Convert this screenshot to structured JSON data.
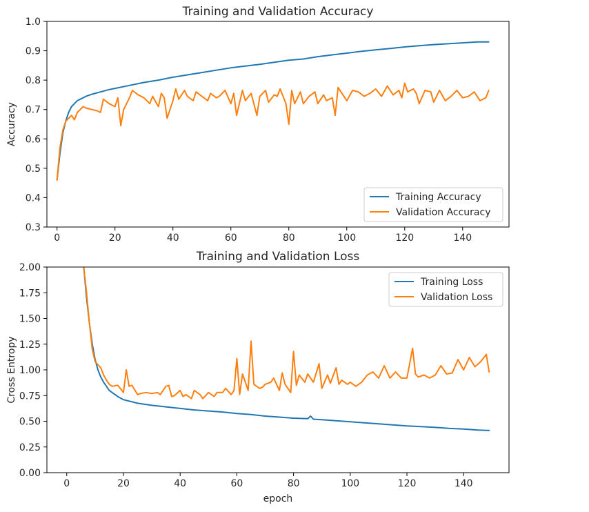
{
  "chart_data": [
    {
      "type": "line",
      "title": "Training and Validation Accuracy",
      "xlabel": "",
      "ylabel": "Accuracy",
      "xlim": [
        -3.5,
        156
      ],
      "ylim": [
        0.3,
        1.0
      ],
      "xticks": [
        0,
        20,
        40,
        60,
        80,
        100,
        120,
        140
      ],
      "yticks": [
        0.3,
        0.4,
        0.5,
        0.6,
        0.7,
        0.8,
        0.9,
        1.0
      ],
      "ytick_labels": [
        "0.3",
        "0.4",
        "0.5",
        "0.6",
        "0.7",
        "0.8",
        "0.9",
        "1.0"
      ],
      "legend_position": "lower-right",
      "series": [
        {
          "name": "Training Accuracy",
          "color": "#1f77b4",
          "x": [
            0,
            1,
            2,
            3,
            4,
            5,
            6,
            7,
            8,
            10,
            12,
            15,
            18,
            20,
            25,
            30,
            35,
            40,
            45,
            50,
            55,
            60,
            65,
            70,
            75,
            80,
            85,
            90,
            95,
            100,
            105,
            110,
            115,
            120,
            125,
            130,
            135,
            140,
            145,
            149
          ],
          "values": [
            0.46,
            0.55,
            0.62,
            0.66,
            0.69,
            0.71,
            0.72,
            0.73,
            0.735,
            0.745,
            0.752,
            0.76,
            0.768,
            0.772,
            0.782,
            0.792,
            0.8,
            0.81,
            0.818,
            0.826,
            0.834,
            0.842,
            0.848,
            0.854,
            0.861,
            0.868,
            0.872,
            0.88,
            0.886,
            0.892,
            0.898,
            0.903,
            0.908,
            0.913,
            0.917,
            0.921,
            0.924,
            0.927,
            0.93,
            0.93
          ]
        },
        {
          "name": "Validation Accuracy",
          "color": "#ff7f0e",
          "x": [
            0,
            1,
            2,
            3,
            4,
            5,
            6,
            7,
            8,
            9,
            10,
            12,
            14,
            15,
            16,
            18,
            20,
            21,
            22,
            23,
            25,
            26,
            28,
            30,
            32,
            33,
            35,
            36,
            37,
            38,
            40,
            41,
            42,
            44,
            45,
            47,
            48,
            50,
            52,
            53,
            55,
            56,
            58,
            60,
            61,
            62,
            64,
            65,
            67,
            69,
            70,
            72,
            73,
            75,
            76,
            77,
            79,
            80,
            81,
            82,
            84,
            85,
            87,
            89,
            90,
            92,
            93,
            95,
            96,
            97,
            99,
            100,
            102,
            104,
            106,
            108,
            110,
            112,
            114,
            116,
            118,
            119,
            120,
            121,
            123,
            124,
            125,
            127,
            129,
            130,
            132,
            134,
            136,
            138,
            140,
            142,
            144,
            146,
            148,
            149
          ],
          "values": [
            0.46,
            0.57,
            0.63,
            0.66,
            0.67,
            0.68,
            0.665,
            0.69,
            0.7,
            0.71,
            0.705,
            0.7,
            0.695,
            0.69,
            0.735,
            0.72,
            0.71,
            0.74,
            0.645,
            0.7,
            0.74,
            0.765,
            0.75,
            0.74,
            0.72,
            0.745,
            0.71,
            0.755,
            0.74,
            0.67,
            0.73,
            0.77,
            0.735,
            0.765,
            0.745,
            0.73,
            0.76,
            0.745,
            0.73,
            0.755,
            0.74,
            0.745,
            0.765,
            0.72,
            0.755,
            0.68,
            0.765,
            0.73,
            0.755,
            0.68,
            0.745,
            0.765,
            0.725,
            0.75,
            0.745,
            0.77,
            0.72,
            0.65,
            0.765,
            0.72,
            0.76,
            0.72,
            0.745,
            0.76,
            0.72,
            0.75,
            0.73,
            0.74,
            0.68,
            0.775,
            0.745,
            0.73,
            0.765,
            0.76,
            0.745,
            0.755,
            0.77,
            0.745,
            0.78,
            0.75,
            0.765,
            0.74,
            0.79,
            0.76,
            0.77,
            0.755,
            0.72,
            0.765,
            0.76,
            0.725,
            0.765,
            0.73,
            0.745,
            0.765,
            0.74,
            0.745,
            0.76,
            0.73,
            0.74,
            0.765
          ]
        }
      ]
    },
    {
      "type": "line",
      "title": "Training and Validation Loss",
      "xlabel": "epoch",
      "ylabel": "Cross Entropy",
      "xlim": [
        -7,
        156
      ],
      "ylim": [
        0.0,
        2.0
      ],
      "xticks": [
        0,
        20,
        40,
        60,
        80,
        100,
        120,
        140
      ],
      "yticks": [
        0.0,
        0.25,
        0.5,
        0.75,
        1.0,
        1.25,
        1.5,
        1.75,
        2.0
      ],
      "ytick_labels": [
        "0.00",
        "0.25",
        "0.50",
        "0.75",
        "1.00",
        "1.25",
        "1.50",
        "1.75",
        "2.00"
      ],
      "legend_position": "upper-right",
      "series": [
        {
          "name": "Training Loss",
          "color": "#1f77b4",
          "x": [
            6,
            7,
            8,
            9,
            10,
            11,
            12,
            13,
            14,
            15,
            16,
            18,
            20,
            25,
            30,
            35,
            40,
            45,
            50,
            55,
            60,
            65,
            70,
            75,
            80,
            85,
            86,
            87,
            90,
            95,
            100,
            105,
            110,
            115,
            120,
            125,
            130,
            135,
            140,
            145,
            149
          ],
          "values": [
            2.0,
            1.7,
            1.45,
            1.25,
            1.1,
            1.0,
            0.93,
            0.88,
            0.84,
            0.8,
            0.78,
            0.74,
            0.71,
            0.675,
            0.655,
            0.64,
            0.625,
            0.61,
            0.6,
            0.59,
            0.575,
            0.565,
            0.55,
            0.54,
            0.53,
            0.525,
            0.55,
            0.52,
            0.515,
            0.505,
            0.495,
            0.485,
            0.475,
            0.465,
            0.455,
            0.448,
            0.44,
            0.43,
            0.425,
            0.415,
            0.41
          ]
        },
        {
          "name": "Validation Loss",
          "color": "#ff7f0e",
          "x": [
            6,
            7,
            8,
            9,
            10,
            11,
            12,
            13,
            14,
            15,
            16,
            18,
            20,
            21,
            22,
            23,
            25,
            26,
            28,
            30,
            32,
            33,
            35,
            36,
            37,
            38,
            40,
            41,
            42,
            44,
            45,
            47,
            48,
            50,
            52,
            53,
            55,
            56,
            58,
            59,
            60,
            61,
            62,
            64,
            65,
            66,
            68,
            69,
            70,
            72,
            73,
            75,
            76,
            77,
            79,
            80,
            81,
            82,
            84,
            85,
            87,
            89,
            90,
            92,
            93,
            95,
            96,
            97,
            99,
            100,
            102,
            104,
            106,
            108,
            110,
            112,
            114,
            116,
            118,
            120,
            122,
            123,
            124,
            126,
            128,
            130,
            132,
            134,
            136,
            138,
            140,
            142,
            144,
            146,
            148,
            149
          ],
          "values": [
            2.0,
            1.75,
            1.45,
            1.2,
            1.08,
            1.05,
            1.02,
            0.95,
            0.9,
            0.86,
            0.84,
            0.85,
            0.78,
            1.0,
            0.84,
            0.85,
            0.76,
            0.77,
            0.78,
            0.77,
            0.78,
            0.76,
            0.84,
            0.85,
            0.74,
            0.75,
            0.8,
            0.74,
            0.76,
            0.72,
            0.8,
            0.76,
            0.72,
            0.78,
            0.74,
            0.78,
            0.78,
            0.82,
            0.76,
            0.8,
            1.11,
            0.76,
            0.96,
            0.8,
            1.28,
            0.86,
            0.82,
            0.83,
            0.86,
            0.88,
            0.92,
            0.8,
            0.97,
            0.86,
            0.78,
            1.18,
            0.85,
            0.95,
            0.88,
            0.96,
            0.88,
            1.06,
            0.82,
            0.95,
            0.87,
            1.02,
            0.86,
            0.9,
            0.86,
            0.88,
            0.84,
            0.88,
            0.95,
            0.98,
            0.92,
            1.04,
            0.92,
            0.98,
            0.92,
            0.92,
            1.21,
            0.96,
            0.93,
            0.95,
            0.92,
            0.95,
            1.04,
            0.96,
            0.97,
            1.1,
            1.0,
            1.12,
            1.03,
            1.08,
            1.15,
            0.98
          ]
        }
      ]
    }
  ]
}
